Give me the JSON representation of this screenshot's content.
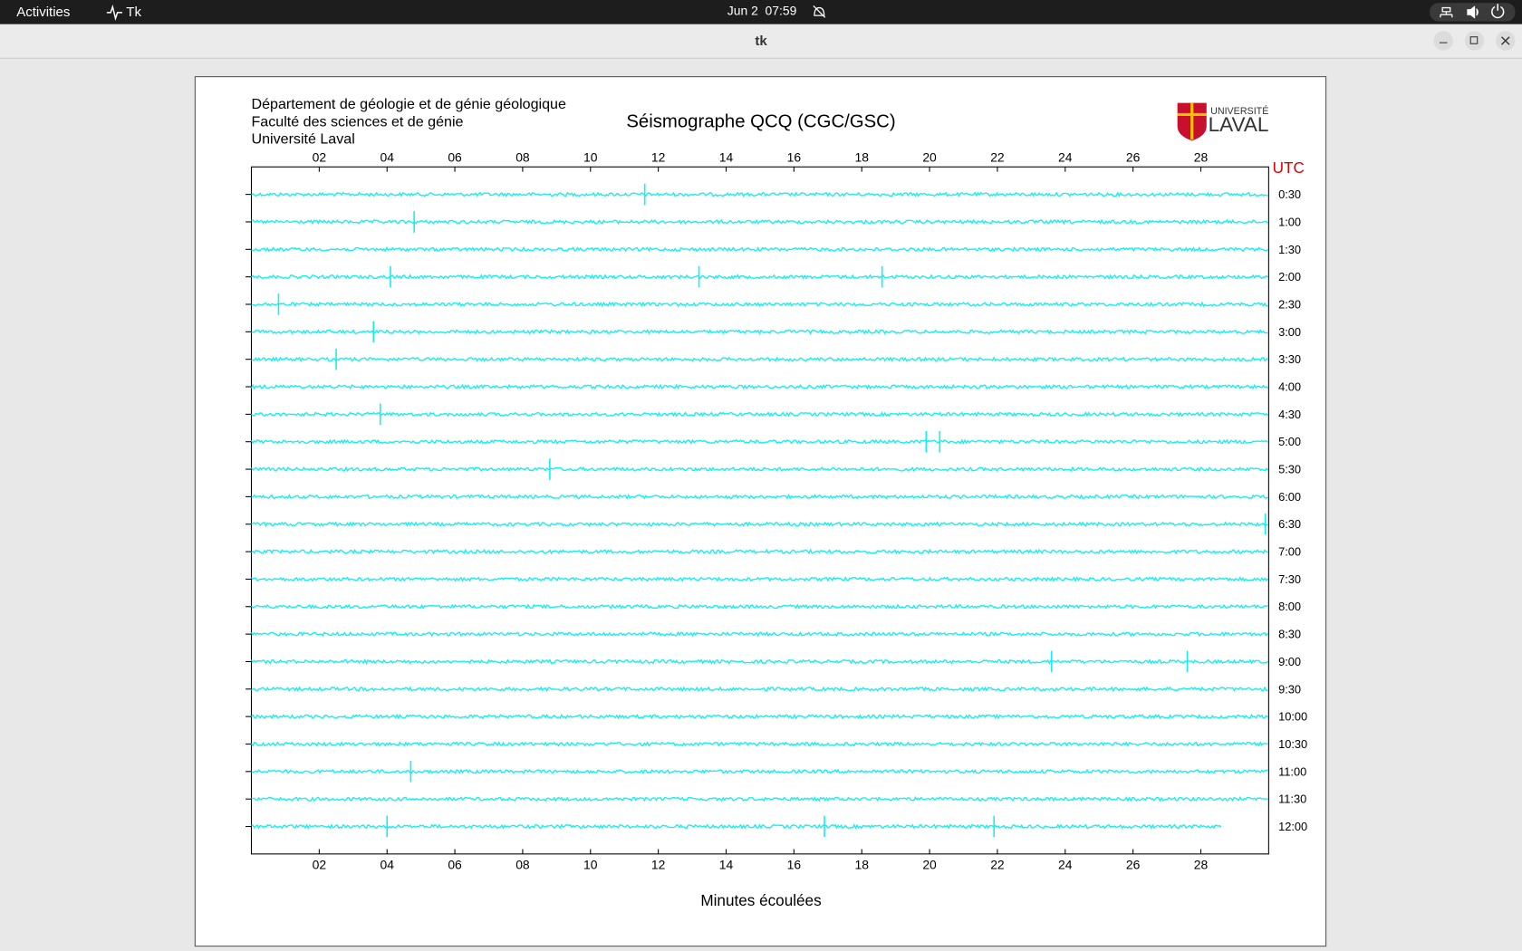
{
  "ui": {
    "topbar": {
      "activities": "Activities",
      "app": "Tk",
      "clock": "Jun 2  07:59"
    },
    "window_title": "tk"
  },
  "header": {
    "lines": [
      "Département de géologie et de génie géologique",
      "Faculté des sciences et de génie",
      "Université Laval"
    ],
    "logo_top": "UNIVERSITÉ",
    "logo_bottom": "LAVAL"
  },
  "chart_data": {
    "type": "seismogram",
    "title": "Séismographe QCQ (CGC/GSC)",
    "xlabel": "Minutes écoulées",
    "time_zone_label": "UTC",
    "color": "#17eeee",
    "xlim": [
      0,
      30
    ],
    "xticks": [
      {
        "value": 2,
        "label": "02"
      },
      {
        "value": 4,
        "label": "04"
      },
      {
        "value": 6,
        "label": "06"
      },
      {
        "value": 8,
        "label": "08"
      },
      10,
      12,
      14,
      16,
      18,
      20,
      22,
      24,
      26,
      28
    ],
    "rows": [
      "0:30",
      "1:00",
      "1:30",
      "2:00",
      "2:30",
      "3:00",
      "3:30",
      "4:00",
      "4:30",
      "5:00",
      "5:30",
      "6:00",
      "6:30",
      "7:00",
      "7:30",
      "8:00",
      "8:30",
      "9:00",
      "9:30",
      "10:00",
      "10:30",
      "11:00",
      "11:30",
      "12:00"
    ],
    "events": [
      [
        11.6
      ],
      [
        4.8
      ],
      [],
      [
        4.1,
        13.2,
        18.6
      ],
      [
        0.8
      ],
      [
        3.6
      ],
      [
        2.5
      ],
      [],
      [
        3.8
      ],
      [
        19.9,
        20.3
      ],
      [
        8.8
      ],
      [],
      [
        29.9
      ],
      [],
      [],
      [],
      [],
      [
        23.6,
        27.6
      ],
      [],
      [],
      [],
      [
        4.7
      ],
      [],
      [
        4.0,
        16.9,
        21.9
      ]
    ],
    "trace_end": 28.6
  }
}
